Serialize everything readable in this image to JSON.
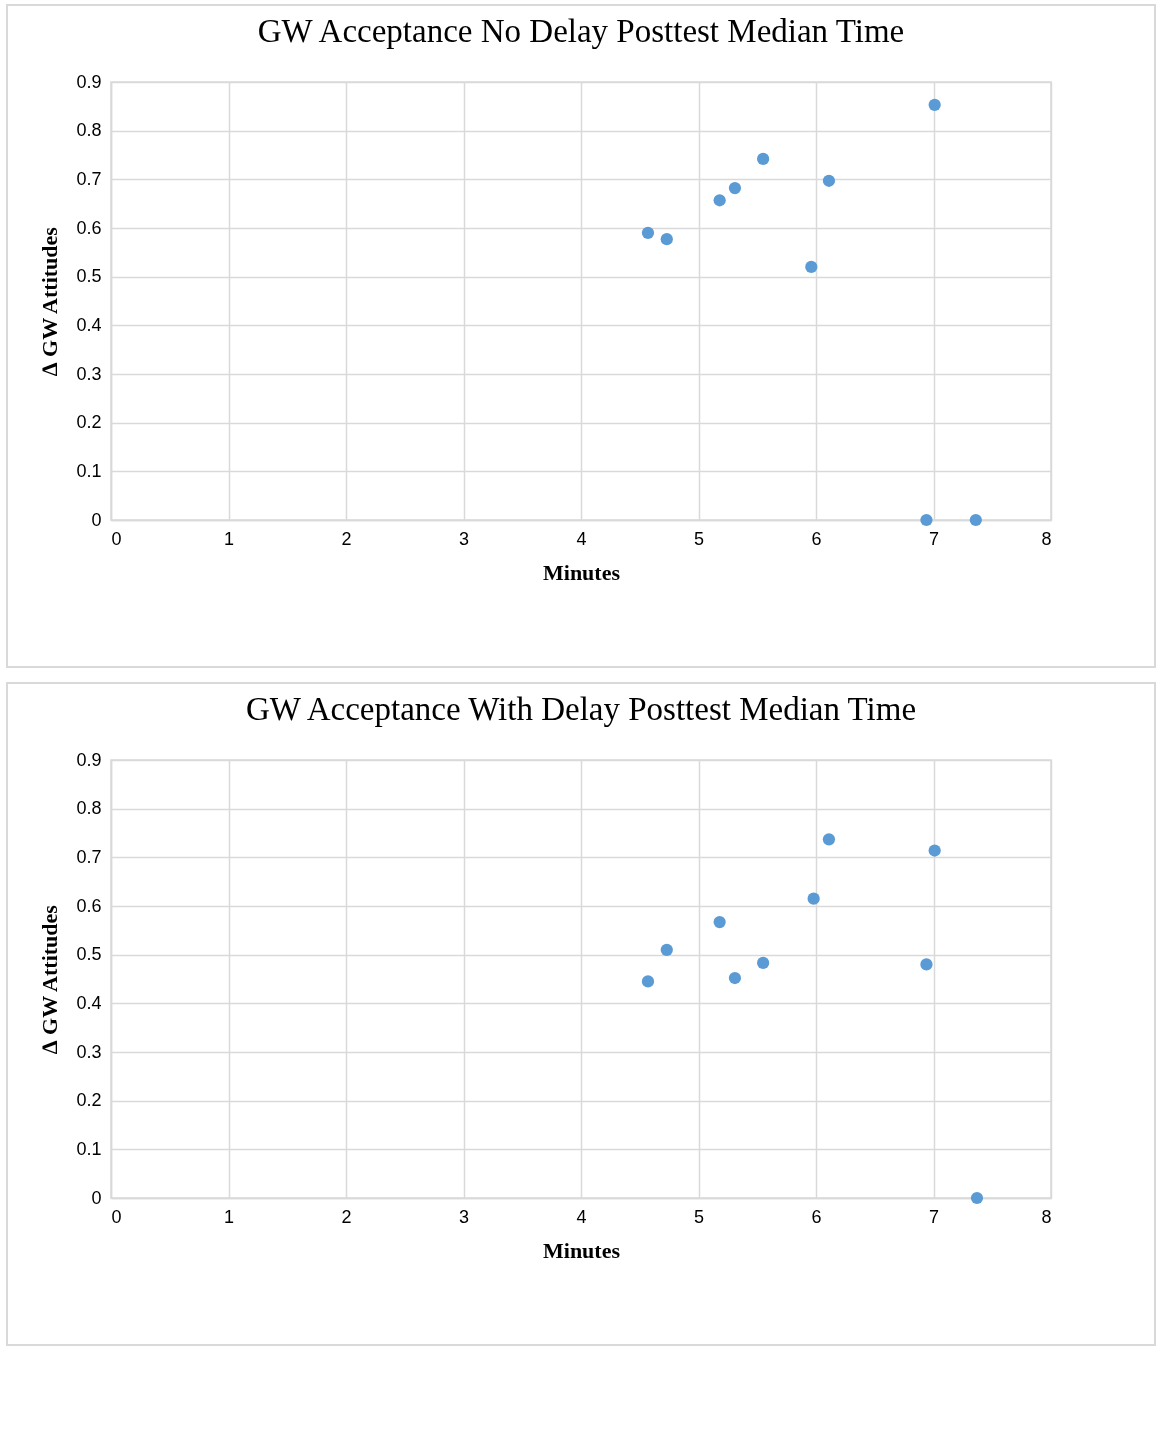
{
  "chart_data": [
    {
      "type": "scatter",
      "title": "GW Acceptance No Delay Posttest Median Time",
      "xlabel": "Minutes",
      "ylabel": "∆ GW Attitudes",
      "x": [
        4.57,
        4.73,
        5.18,
        5.31,
        5.55,
        6.11,
        5.96,
        7.01,
        6.94,
        7.36
      ],
      "values": [
        0.59,
        0.577,
        0.657,
        0.682,
        0.742,
        0.697,
        0.52,
        0.853,
        0,
        0
      ],
      "color": "#5b9bd5",
      "marker": "circle",
      "xlim": [
        0,
        8
      ],
      "ylim": [
        0,
        0.9
      ],
      "xticks": [
        0,
        1,
        2,
        3,
        4,
        5,
        6,
        7,
        8
      ],
      "yticks": [
        0,
        0.1,
        0.2,
        0.3,
        0.4,
        0.5,
        0.6,
        0.7,
        0.8,
        0.9
      ],
      "grid": true
    },
    {
      "type": "scatter",
      "title": "GW Acceptance With Delay Posttest Median Time",
      "xlabel": "Minutes",
      "ylabel": "∆ GW Attitudes",
      "x": [
        4.57,
        4.73,
        5.18,
        5.31,
        5.55,
        5.98,
        6.11,
        7.01,
        6.94,
        7.37
      ],
      "values": [
        0.445,
        0.51,
        0.567,
        0.452,
        0.483,
        0.615,
        0.737,
        0.714,
        0.48,
        0
      ],
      "color": "#5b9bd5",
      "marker": "circle",
      "xlim": [
        0,
        8
      ],
      "ylim": [
        0,
        0.9
      ],
      "xticks": [
        0,
        1,
        2,
        3,
        4,
        5,
        6,
        7,
        8
      ],
      "yticks": [
        0,
        0.1,
        0.2,
        0.3,
        0.4,
        0.5,
        0.6,
        0.7,
        0.8,
        0.9
      ],
      "grid": true
    }
  ]
}
